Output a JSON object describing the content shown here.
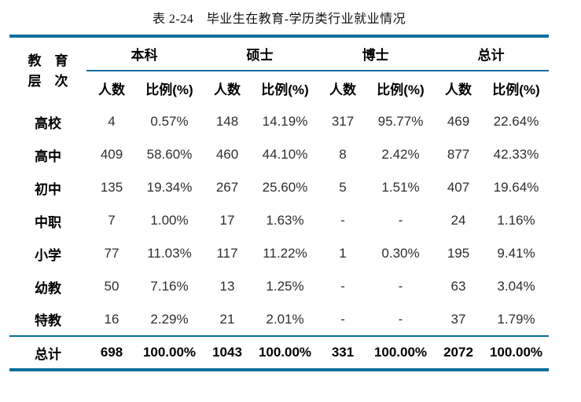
{
  "title": "表 2-24　毕业生在教育-学历类行业就业情况",
  "colors": {
    "accent_line": "#076d9c"
  },
  "table": {
    "row_header": {
      "line1": "教　育",
      "line2": "层　次"
    },
    "groups": [
      {
        "label": "本科"
      },
      {
        "label": "硕士"
      },
      {
        "label": "博士"
      },
      {
        "label": "总计"
      }
    ],
    "subheaders": {
      "count": "人数",
      "ratio": "比例(%)"
    },
    "rows": [
      {
        "label": "高校",
        "cells": [
          "4",
          "0.57%",
          "148",
          "14.19%",
          "317",
          "95.77%",
          "469",
          "22.64%"
        ]
      },
      {
        "label": "高中",
        "cells": [
          "409",
          "58.60%",
          "460",
          "44.10%",
          "8",
          "2.42%",
          "877",
          "42.33%"
        ]
      },
      {
        "label": "初中",
        "cells": [
          "135",
          "19.34%",
          "267",
          "25.60%",
          "5",
          "1.51%",
          "407",
          "19.64%"
        ]
      },
      {
        "label": "中职",
        "cells": [
          "7",
          "1.00%",
          "17",
          "1.63%",
          "-",
          "-",
          "24",
          "1.16%"
        ]
      },
      {
        "label": "小学",
        "cells": [
          "77",
          "11.03%",
          "117",
          "11.22%",
          "1",
          "0.30%",
          "195",
          "9.41%"
        ]
      },
      {
        "label": "幼教",
        "cells": [
          "50",
          "7.16%",
          "13",
          "1.25%",
          "-",
          "-",
          "63",
          "3.04%"
        ]
      },
      {
        "label": "特教",
        "cells": [
          "16",
          "2.29%",
          "21",
          "2.01%",
          "-",
          "-",
          "37",
          "1.79%"
        ]
      }
    ],
    "total_row": {
      "label": "总计",
      "cells": [
        "698",
        "100.00%",
        "1043",
        "100.00%",
        "331",
        "100.00%",
        "2072",
        "100.00%"
      ]
    }
  }
}
